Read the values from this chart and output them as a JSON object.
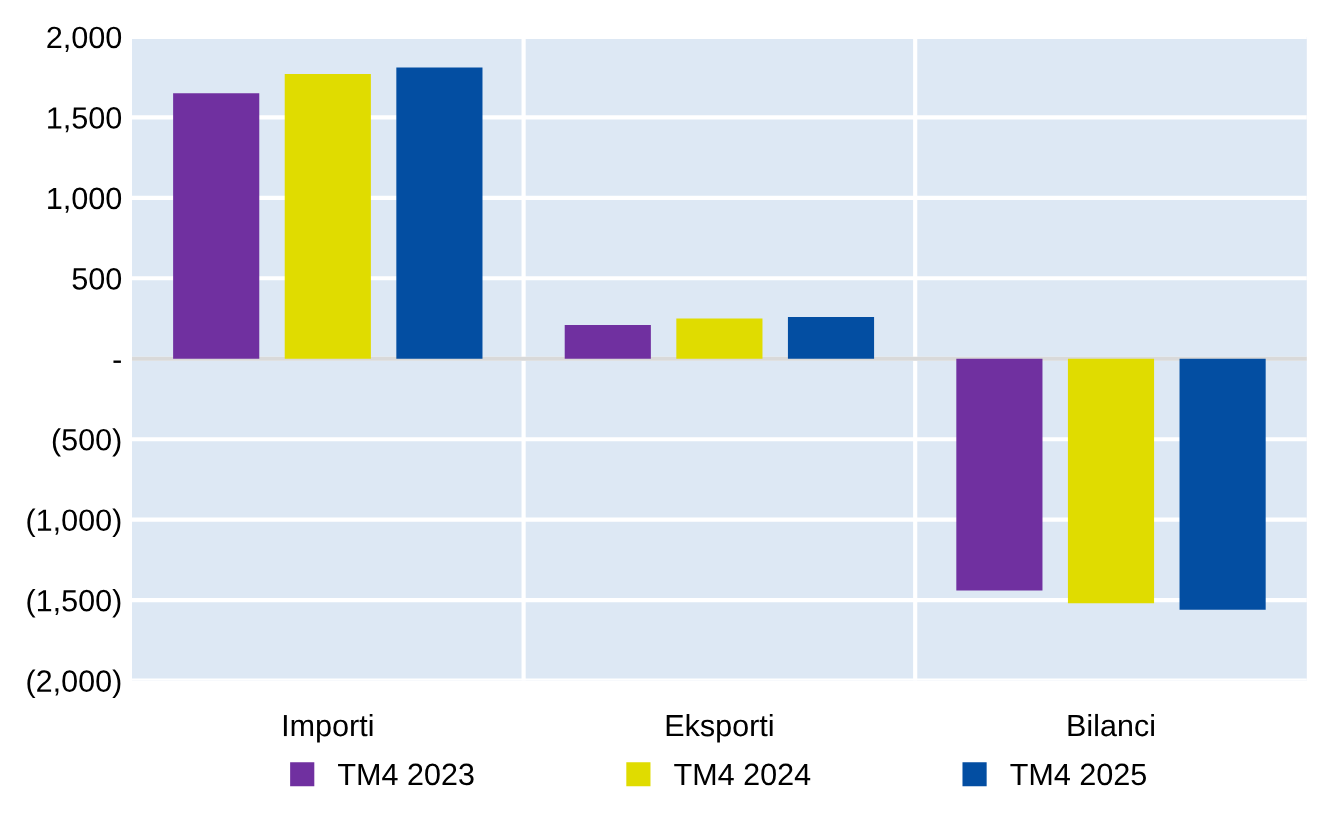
{
  "chart_data": {
    "type": "bar",
    "categories": [
      "Importi",
      "Eksporti",
      "Bilanci"
    ],
    "series": [
      {
        "name": "TM4 2023",
        "color": "#7030a0",
        "values": [
          1650,
          210,
          -1440
        ]
      },
      {
        "name": "TM4 2024",
        "color": "#e0dc00",
        "values": [
          1770,
          250,
          -1520
        ]
      },
      {
        "name": "TM4 2025",
        "color": "#034ea2",
        "values": [
          1810,
          260,
          -1560
        ]
      }
    ],
    "ylim": [
      -2000,
      2000
    ],
    "yticks": [
      {
        "value": -2000,
        "label": "(2,000)"
      },
      {
        "value": -1500,
        "label": "(1,500)"
      },
      {
        "value": -1000,
        "label": "(1,000)"
      },
      {
        "value": -500,
        "label": "(500)"
      },
      {
        "value": 0,
        "label": "-"
      },
      {
        "value": 500,
        "label": "500"
      },
      {
        "value": 1000,
        "label": "1,000"
      },
      {
        "value": 1500,
        "label": "1,500"
      },
      {
        "value": 2000,
        "label": "2,000"
      }
    ],
    "grid": true,
    "legend": "bottom"
  }
}
